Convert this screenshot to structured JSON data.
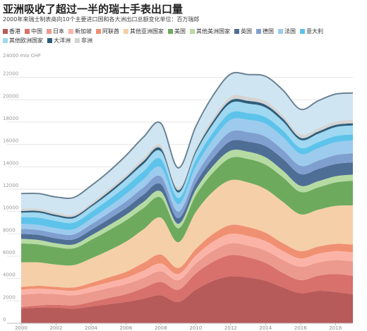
{
  "chart_data": {
    "type": "area",
    "title": "亚洲吸收了超过一半的瑞士手表出口量",
    "subtitle": "2000年来瑞士制表商向10个主要进口国和各大洲出口总额变化单位：百万瑞郎",
    "ylabel": "24000 mio CHF",
    "ylim": [
      0,
      24000
    ],
    "xlim": [
      2000,
      2019
    ],
    "x_ticks": [
      2000,
      2002,
      2004,
      2006,
      2008,
      2010,
      2012,
      2014,
      2016,
      2018
    ],
    "y_ticks": [
      0,
      2000,
      4000,
      6000,
      8000,
      10000,
      12000,
      14000,
      16000,
      18000,
      20000,
      22000
    ],
    "x": [
      2000,
      2001,
      2002,
      2003,
      2004,
      2005,
      2006,
      2007,
      2008,
      2009,
      2010,
      2011,
      2012,
      2013,
      2014,
      2015,
      2016,
      2017,
      2018,
      2019
    ],
    "legend_position": "top",
    "series": [
      {
        "name": "香港",
        "color": "#b75a5a",
        "values": [
          1300,
          1400,
          1400,
          1300,
          1500,
          1700,
          1900,
          2200,
          2500,
          1900,
          3000,
          3800,
          4200,
          4100,
          3800,
          3200,
          2700,
          2900,
          2800,
          2600
        ]
      },
      {
        "name": "中国",
        "color": "#d8706b",
        "values": [
          150,
          200,
          250,
          300,
          400,
          550,
          700,
          950,
          1200,
          1100,
          1450,
          1700,
          1900,
          1800,
          1600,
          1300,
          1150,
          1350,
          1600,
          1650
        ]
      },
      {
        "name": "日本",
        "color": "#ec9a8d",
        "values": [
          1100,
          1050,
          950,
          900,
          900,
          900,
          900,
          900,
          950,
          850,
          900,
          1000,
          1050,
          1050,
          1100,
          1150,
          1200,
          1200,
          1250,
          1300
        ]
      },
      {
        "name": "新加坡",
        "color": "#fcb3a7",
        "values": [
          450,
          450,
          400,
          400,
          450,
          500,
          550,
          650,
          700,
          550,
          700,
          800,
          850,
          850,
          850,
          800,
          750,
          750,
          800,
          800
        ]
      },
      {
        "name": "阿联酋",
        "color": "#f09072",
        "values": [
          250,
          250,
          250,
          300,
          350,
          450,
          550,
          700,
          800,
          550,
          600,
          700,
          800,
          800,
          750,
          700,
          650,
          650,
          650,
          700
        ]
      },
      {
        "name": "其他亚洲国家",
        "color": "#f5cfa8",
        "values": [
          2200,
          2100,
          2000,
          2000,
          2200,
          2400,
          2700,
          3000,
          3300,
          2300,
          3300,
          3800,
          4000,
          4000,
          3900,
          3700,
          3300,
          3300,
          3400,
          3500
        ]
      },
      {
        "name": "美国",
        "color": "#6eaa5e",
        "values": [
          1700,
          1600,
          1550,
          1500,
          1650,
          1800,
          1900,
          1900,
          1800,
          1250,
          1500,
          1700,
          2000,
          2100,
          2200,
          2200,
          2000,
          2000,
          2100,
          2200
        ]
      },
      {
        "name": "其他美洲国家",
        "color": "#b5dba3",
        "values": [
          400,
          400,
          350,
          350,
          400,
          450,
          500,
          550,
          550,
          400,
          500,
          600,
          650,
          650,
          650,
          600,
          550,
          550,
          550,
          550
        ]
      },
      {
        "name": "英国",
        "color": "#4f6e96",
        "values": [
          450,
          450,
          450,
          450,
          500,
          550,
          600,
          650,
          650,
          500,
          600,
          700,
          850,
          900,
          1000,
          1050,
          1050,
          1100,
          1100,
          1100
        ]
      },
      {
        "name": "德国",
        "color": "#7f9fcf",
        "values": [
          450,
          450,
          450,
          450,
          500,
          550,
          600,
          650,
          700,
          600,
          650,
          750,
          850,
          850,
          850,
          800,
          750,
          750,
          800,
          800
        ]
      },
      {
        "name": "法国",
        "color": "#9ccbee",
        "values": [
          450,
          450,
          450,
          450,
          500,
          550,
          650,
          700,
          800,
          650,
          800,
          900,
          1050,
          1100,
          1150,
          1150,
          1050,
          1100,
          1150,
          1150
        ]
      },
      {
        "name": "意大利",
        "color": "#5ec3ea",
        "values": [
          600,
          650,
          650,
          600,
          600,
          650,
          700,
          750,
          750,
          550,
          600,
          650,
          650,
          600,
          600,
          600,
          550,
          550,
          550,
          550
        ]
      },
      {
        "name": "其他欧洲国家",
        "color": "#9fd8f0",
        "values": [
          400,
          450,
          400,
          400,
          450,
          500,
          600,
          650,
          700,
          500,
          650,
          750,
          850,
          850,
          850,
          800,
          700,
          750,
          800,
          800
        ]
      },
      {
        "name": "大洋洲",
        "color": "#2f5d7a",
        "values": [
          150,
          150,
          150,
          150,
          150,
          200,
          200,
          250,
          250,
          200,
          200,
          250,
          250,
          250,
          250,
          250,
          200,
          200,
          200,
          200
        ]
      },
      {
        "name": "非洲",
        "color": "#d4d4d4",
        "values": [
          200,
          200,
          200,
          200,
          200,
          250,
          250,
          300,
          300,
          250,
          250,
          300,
          350,
          350,
          350,
          300,
          300,
          300,
          300,
          300
        ]
      },
      {
        "name": "",
        "color": "#cfe6f2",
        "values": [
          1350,
          1350,
          1400,
          1500,
          1550,
          1550,
          1700,
          1850,
          1950,
          1750,
          1900,
          2000,
          2000,
          2000,
          2200,
          2250,
          2250,
          2450,
          2450,
          2400
        ]
      }
    ]
  }
}
